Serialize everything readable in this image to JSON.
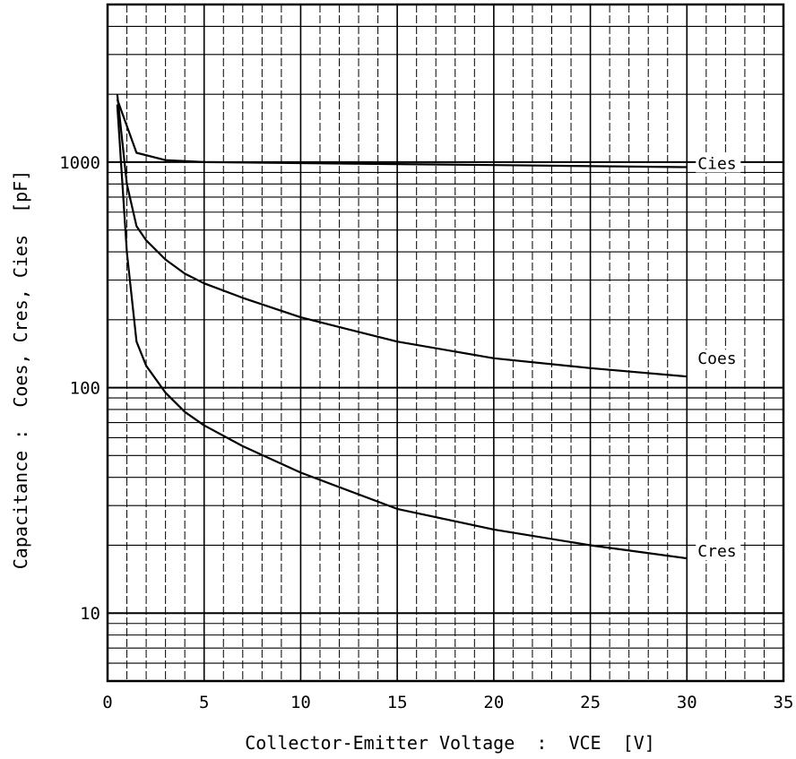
{
  "chart_data": {
    "type": "line",
    "title": "",
    "xlabel": "Collector-Emitter Voltage  :  VCE  [V]",
    "ylabel": "Capacitance :  Coes, Cres, Cies  [pF]",
    "xlim": [
      0,
      35
    ],
    "ylim": [
      5,
      5000
    ],
    "y_scale": "log",
    "x_ticks": [
      "0",
      "5",
      "10",
      "15",
      "20",
      "25",
      "30",
      "35"
    ],
    "y_ticks": [
      "10",
      "100",
      "1000"
    ],
    "grid": true,
    "series": [
      {
        "name": "Cies",
        "x": [
          0.5,
          1.5,
          3,
          5,
          10,
          15,
          20,
          25,
          30
        ],
        "y": [
          1900,
          1100,
          1020,
          1000,
          990,
          980,
          970,
          960,
          950
        ]
      },
      {
        "name": "Coes",
        "x": [
          0.5,
          1,
          1.5,
          2,
          3,
          4,
          5,
          7,
          10,
          15,
          20,
          25,
          30
        ],
        "y": [
          2000,
          800,
          520,
          450,
          370,
          320,
          290,
          250,
          205,
          160,
          135,
          122,
          112
        ]
      },
      {
        "name": "Cres",
        "x": [
          0.5,
          1,
          1.5,
          2,
          3,
          4,
          5,
          7,
          10,
          15,
          20,
          25,
          30
        ],
        "y": [
          1800,
          400,
          160,
          125,
          95,
          78,
          68,
          55,
          42,
          29,
          23.5,
          20,
          17.5
        ]
      }
    ]
  }
}
